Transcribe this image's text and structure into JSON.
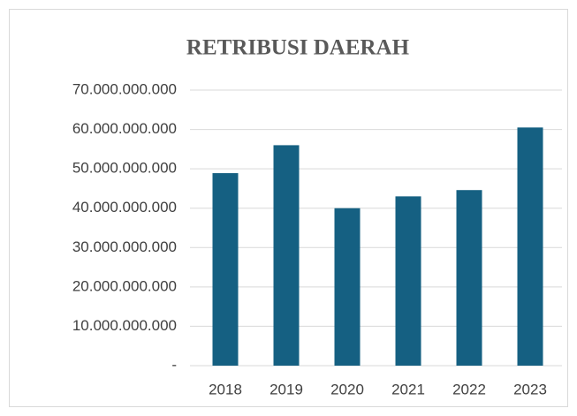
{
  "chart_data": {
    "type": "bar",
    "title": "RETRIBUSI DAERAH",
    "categories": [
      "2018",
      "2019",
      "2020",
      "2021",
      "2022",
      "2023"
    ],
    "values": [
      48900000000,
      56000000000,
      40000000000,
      43000000000,
      44600000000,
      60500000000
    ],
    "color": "#156082",
    "ylim": [
      0,
      70000000000
    ],
    "yticks": [
      {
        "value": 0,
        "label": "-"
      },
      {
        "value": 10000000000,
        "label": "10.000.000.000"
      },
      {
        "value": 20000000000,
        "label": "20.000.000.000"
      },
      {
        "value": 30000000000,
        "label": "30.000.000.000"
      },
      {
        "value": 40000000000,
        "label": "40.000.000.000"
      },
      {
        "value": 50000000000,
        "label": "50.000.000.000"
      },
      {
        "value": 60000000000,
        "label": "60.000.000.000"
      },
      {
        "value": 70000000000,
        "label": "70.000.000.000"
      }
    ],
    "grid": true
  }
}
